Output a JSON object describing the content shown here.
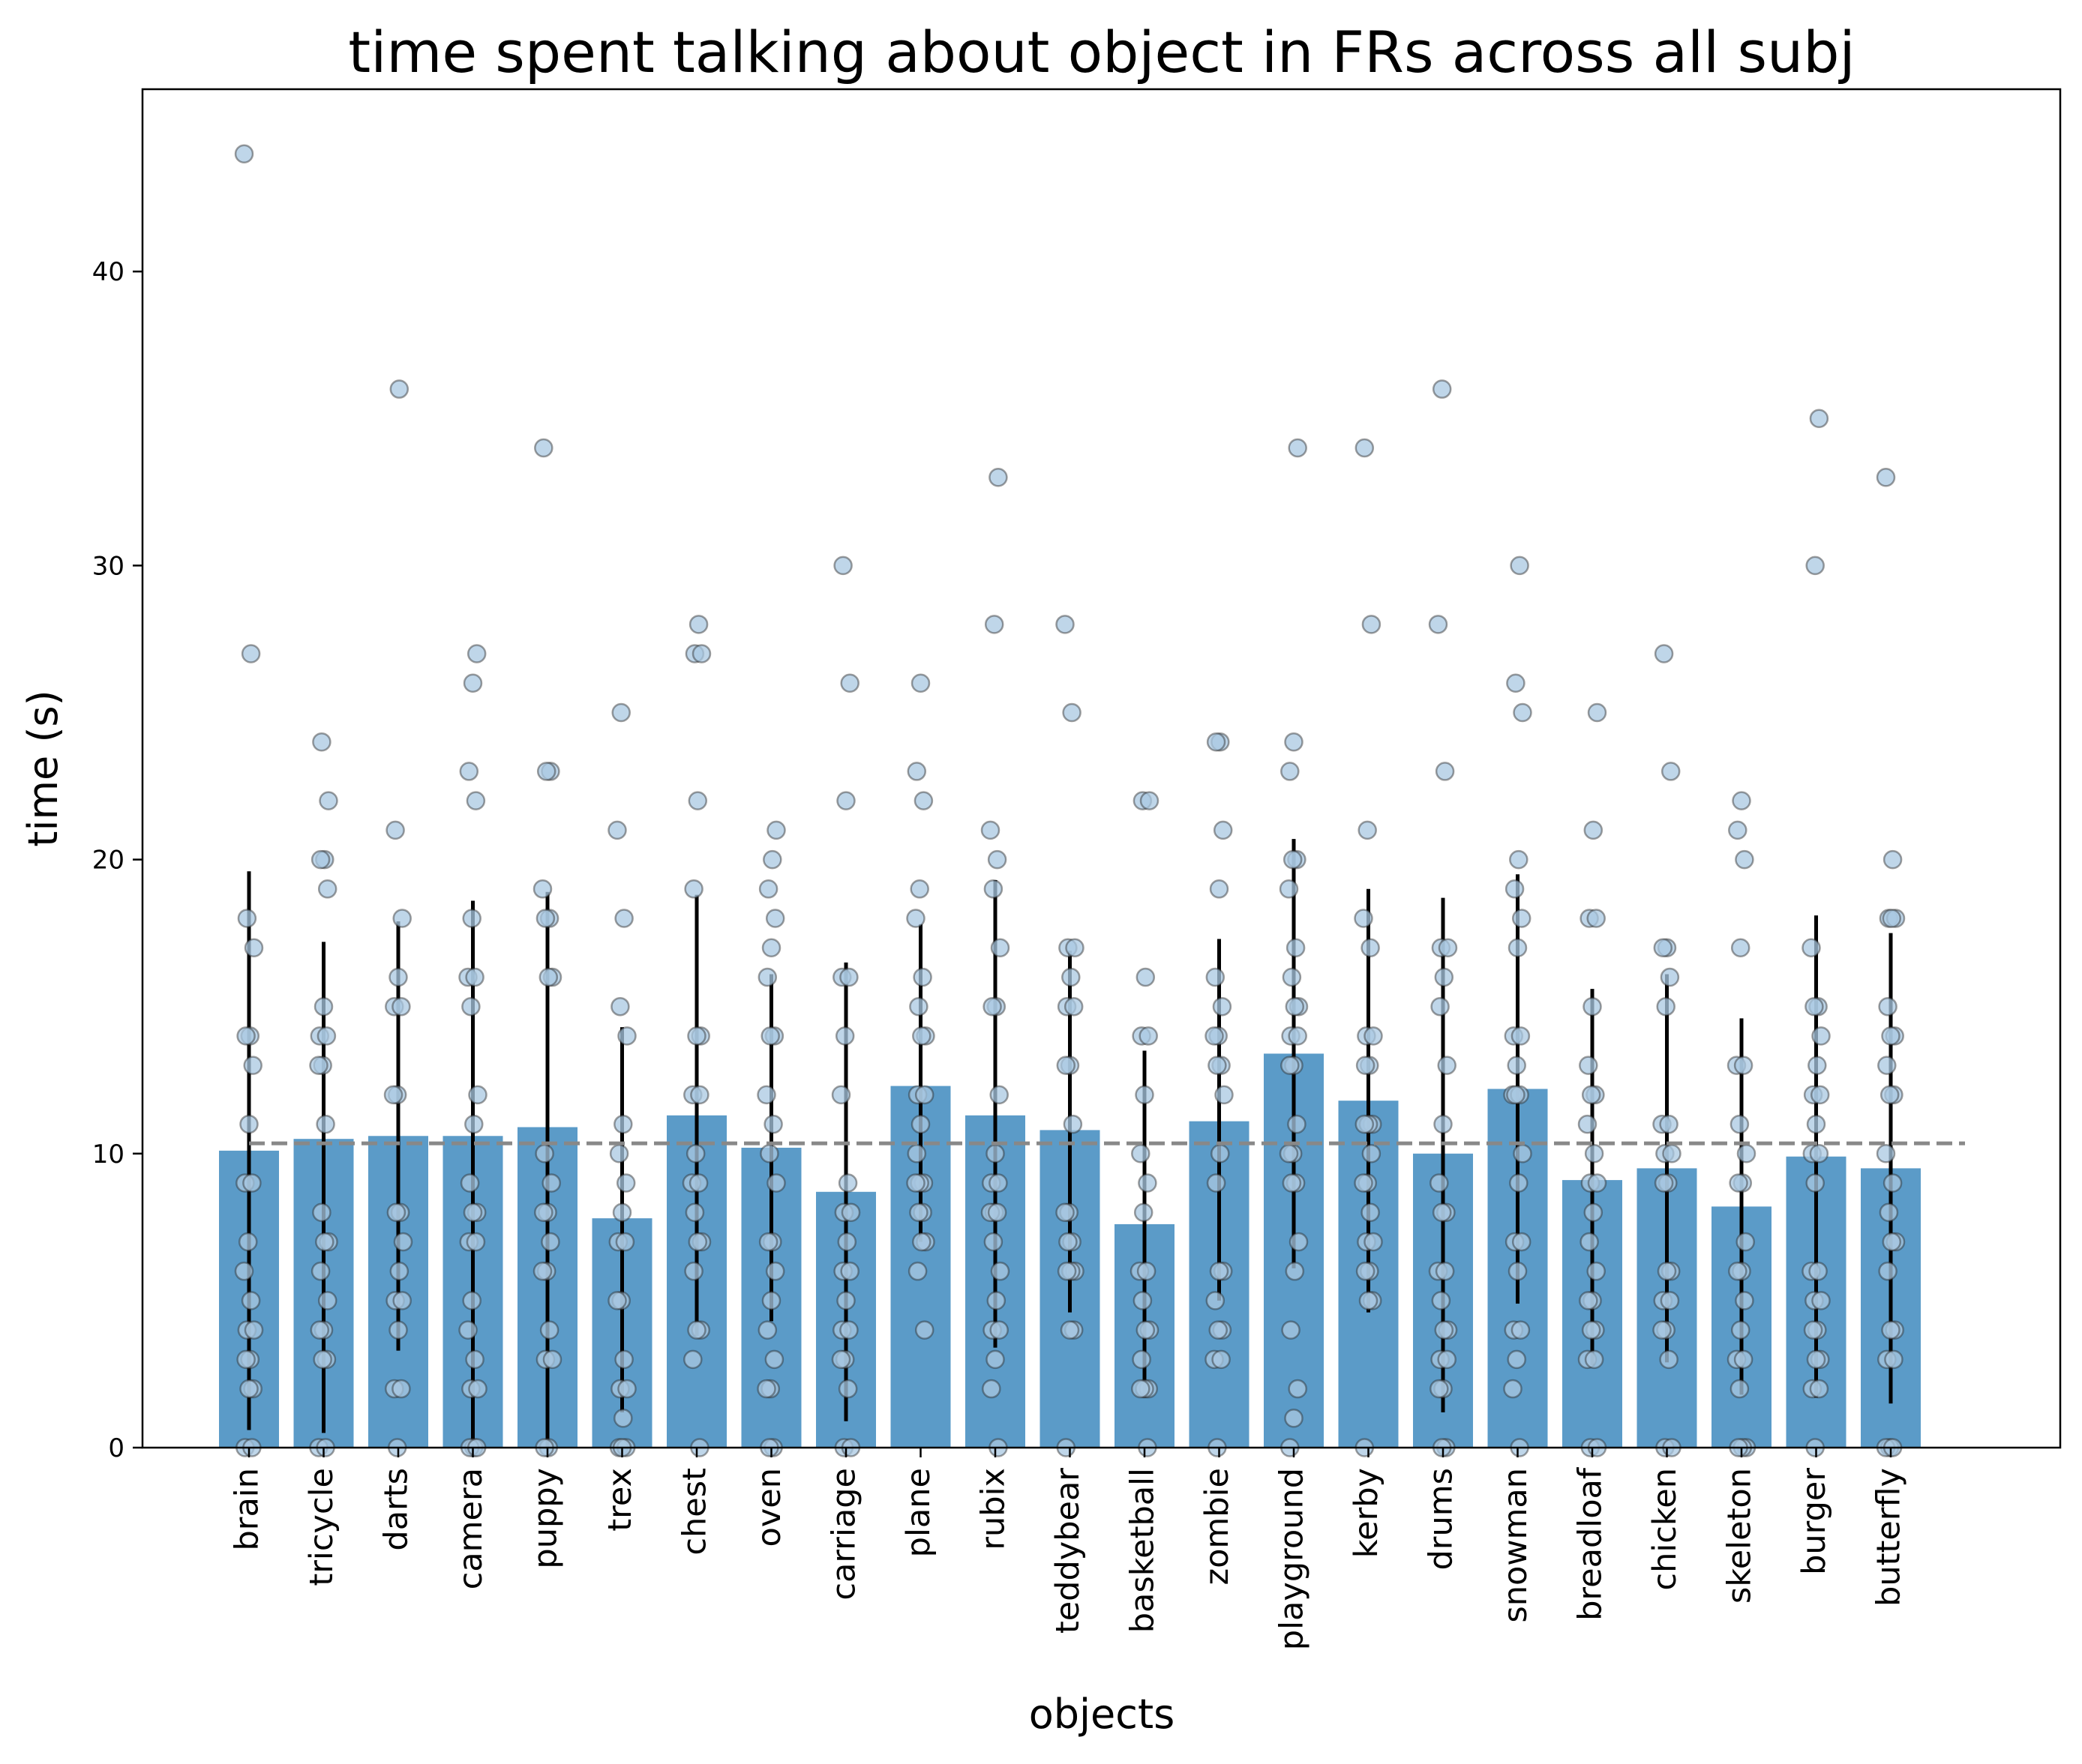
{
  "chart_data": {
    "type": "bar",
    "title": "time spent talking about object in FRs across all subj",
    "xlabel": "objects",
    "ylabel": "time (s)",
    "ylim": [
      0,
      46.2
    ],
    "yticks": [
      0,
      10,
      20,
      30,
      40
    ],
    "grid": false,
    "legend": "none",
    "reference_line": {
      "y": 10.35,
      "style": "dashed",
      "color": "#888888"
    },
    "colors": {
      "bar": "#5b9bc8",
      "point_fill": "#a9c8e2",
      "point_edge": "#2b2b2b",
      "errorbar": "#000000"
    },
    "categories": [
      "brain",
      "tricycle",
      "darts",
      "camera",
      "puppy",
      "trex",
      "chest",
      "oven",
      "carriage",
      "plane",
      "rubix",
      "teddybear",
      "basketball",
      "zombie",
      "playground",
      "kerby",
      "drums",
      "snowman",
      "breadloaf",
      "chicken",
      "skeleton",
      "burger",
      "butterfly"
    ],
    "values": [
      10.1,
      10.5,
      10.6,
      10.6,
      10.9,
      7.8,
      11.3,
      10.2,
      8.7,
      12.3,
      11.3,
      10.8,
      7.6,
      11.1,
      13.4,
      11.8,
      10.0,
      12.2,
      9.1,
      9.5,
      8.2,
      9.9,
      9.5
    ],
    "error_low": [
      0.6,
      0.5,
      3.3,
      0.0,
      0.0,
      1.2,
      3.8,
      4.3,
      0.9,
      7.0,
      3.4,
      4.6,
      1.7,
      5.0,
      6.1,
      4.6,
      1.2,
      4.9,
      2.8,
      2.9,
      1.8,
      1.7,
      1.5
    ],
    "error_high": [
      19.6,
      17.2,
      17.9,
      18.6,
      18.9,
      14.3,
      18.8,
      16.1,
      16.5,
      17.8,
      19.3,
      16.9,
      13.5,
      17.3,
      20.7,
      19.0,
      18.7,
      19.5,
      15.6,
      16.1,
      14.6,
      18.1,
      17.5
    ],
    "points": [
      [
        44,
        27,
        18,
        17,
        14,
        14,
        13,
        11,
        9,
        9,
        7,
        6,
        5,
        4,
        4,
        3,
        3,
        2,
        2,
        0,
        0
      ],
      [
        24,
        22,
        20,
        20,
        19,
        15,
        14,
        14,
        13,
        13,
        11,
        8,
        7,
        7,
        6,
        5,
        4,
        4,
        3,
        3,
        0,
        0
      ],
      [
        36,
        21,
        18,
        16,
        15,
        15,
        12,
        12,
        8,
        8,
        7,
        6,
        5,
        5,
        4,
        2,
        2,
        0
      ],
      [
        27,
        26,
        23,
        22,
        18,
        16,
        16,
        15,
        12,
        11,
        9,
        8,
        8,
        7,
        7,
        5,
        4,
        3,
        2,
        2,
        0,
        0,
        0
      ],
      [
        34,
        23,
        23,
        19,
        18,
        18,
        16,
        16,
        10,
        9,
        8,
        8,
        7,
        6,
        6,
        4,
        3,
        3,
        0,
        0
      ],
      [
        25,
        21,
        18,
        15,
        14,
        11,
        10,
        9,
        8,
        7,
        7,
        5,
        5,
        3,
        2,
        2,
        1,
        0,
        0,
        0
      ],
      [
        28,
        27,
        27,
        22,
        19,
        14,
        14,
        12,
        12,
        10,
        9,
        9,
        8,
        7,
        7,
        6,
        4,
        4,
        3,
        0
      ],
      [
        21,
        20,
        19,
        18,
        17,
        16,
        14,
        14,
        12,
        11,
        10,
        9,
        7,
        7,
        6,
        5,
        4,
        3,
        2,
        2,
        0,
        0
      ],
      [
        30,
        26,
        22,
        16,
        16,
        14,
        12,
        9,
        8,
        8,
        7,
        6,
        6,
        5,
        4,
        4,
        3,
        3,
        2,
        0,
        0
      ],
      [
        26,
        23,
        22,
        19,
        18,
        16,
        15,
        14,
        14,
        12,
        12,
        11,
        10,
        9,
        9,
        9,
        8,
        8,
        7,
        7,
        6,
        4
      ],
      [
        33,
        28,
        21,
        20,
        19,
        17,
        15,
        15,
        12,
        10,
        9,
        9,
        8,
        8,
        8,
        7,
        6,
        5,
        4,
        4,
        3,
        2,
        0
      ],
      [
        28,
        25,
        17,
        17,
        16,
        15,
        15,
        13,
        13,
        11,
        8,
        8,
        7,
        7,
        6,
        6,
        6,
        4,
        4,
        0
      ],
      [
        22,
        22,
        16,
        14,
        14,
        12,
        10,
        9,
        8,
        6,
        6,
        5,
        4,
        4,
        3,
        2,
        2,
        2,
        0
      ],
      [
        24,
        24,
        21,
        19,
        16,
        15,
        14,
        14,
        13,
        13,
        12,
        10,
        9,
        6,
        6,
        5,
        4,
        4,
        3,
        3,
        0
      ],
      [
        34,
        24,
        23,
        20,
        20,
        19,
        17,
        16,
        15,
        15,
        14,
        14,
        13,
        13,
        11,
        10,
        10,
        9,
        9,
        7,
        6,
        4,
        2,
        1,
        0
      ],
      [
        34,
        28,
        21,
        18,
        17,
        14,
        14,
        13,
        13,
        11,
        11,
        11,
        10,
        9,
        9,
        8,
        7,
        7,
        6,
        6,
        5,
        5,
        0
      ],
      [
        36,
        28,
        23,
        17,
        17,
        16,
        15,
        13,
        11,
        9,
        8,
        8,
        6,
        6,
        5,
        4,
        4,
        3,
        3,
        2,
        2,
        0,
        0
      ],
      [
        30,
        26,
        25,
        20,
        19,
        18,
        17,
        14,
        14,
        13,
        12,
        12,
        12,
        10,
        9,
        7,
        7,
        6,
        4,
        4,
        3,
        2,
        0
      ],
      [
        25,
        21,
        18,
        18,
        15,
        13,
        12,
        12,
        11,
        10,
        9,
        9,
        8,
        7,
        6,
        5,
        5,
        4,
        4,
        3,
        3,
        0,
        0
      ],
      [
        27,
        23,
        17,
        17,
        16,
        15,
        11,
        11,
        10,
        10,
        9,
        9,
        6,
        6,
        5,
        5,
        4,
        4,
        3,
        0,
        0
      ],
      [
        22,
        21,
        20,
        17,
        13,
        13,
        11,
        10,
        9,
        9,
        7,
        6,
        6,
        5,
        4,
        3,
        3,
        2,
        0,
        0,
        0
      ],
      [
        35,
        30,
        17,
        15,
        15,
        14,
        13,
        12,
        12,
        11,
        10,
        10,
        9,
        6,
        6,
        5,
        5,
        4,
        4,
        3,
        3,
        2,
        2,
        0
      ],
      [
        33,
        20,
        18,
        18,
        18,
        15,
        14,
        14,
        13,
        12,
        12,
        10,
        9,
        8,
        7,
        7,
        6,
        4,
        4,
        3,
        3,
        0,
        0,
        0
      ]
    ]
  }
}
